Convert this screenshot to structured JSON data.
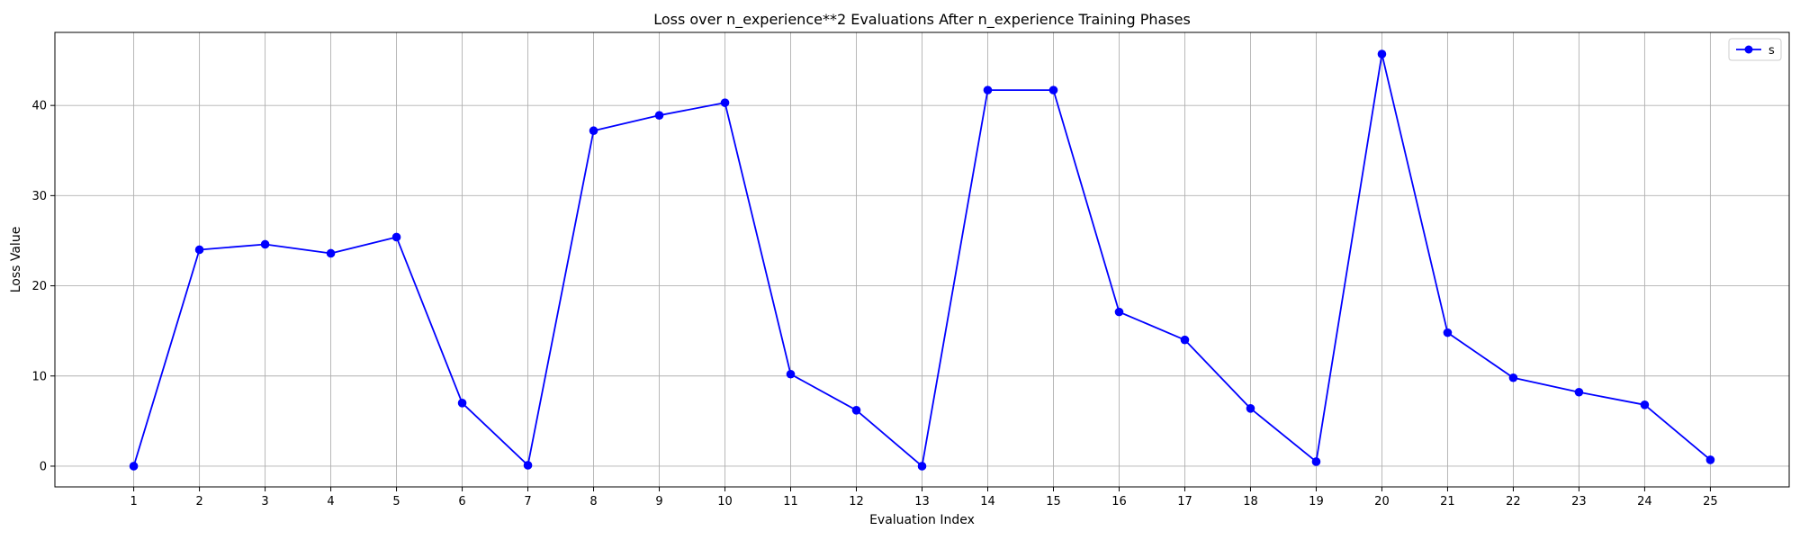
{
  "chart_data": {
    "type": "line",
    "title": "Loss over n_experience**2 Evaluations After n_experience Training Phases",
    "xlabel": "Evaluation Index",
    "ylabel": "Loss Value",
    "x": [
      1,
      2,
      3,
      4,
      5,
      6,
      7,
      8,
      9,
      10,
      11,
      12,
      13,
      14,
      15,
      16,
      17,
      18,
      19,
      20,
      21,
      22,
      23,
      24,
      25
    ],
    "x_tick_labels": [
      "1",
      "2",
      "3",
      "4",
      "5",
      "6",
      "7",
      "8",
      "9",
      "10",
      "11",
      "12",
      "13",
      "14",
      "15",
      "16",
      "17",
      "18",
      "19",
      "20",
      "21",
      "22",
      "23",
      "24",
      "25"
    ],
    "xlim": [
      -0.2,
      26.2
    ],
    "y_ticks": [
      0,
      10,
      20,
      30,
      40
    ],
    "y_tick_labels": [
      "0",
      "10",
      "20",
      "30",
      "40"
    ],
    "ylim": [
      -2.3,
      48.1
    ],
    "grid": true,
    "legend_position": "top-right",
    "series": [
      {
        "name": "s",
        "color": "#0000ff",
        "marker": "circle",
        "values": [
          0.0,
          24.0,
          24.6,
          23.6,
          25.4,
          7.0,
          0.1,
          37.2,
          38.9,
          40.3,
          10.2,
          6.2,
          0.0,
          41.7,
          41.7,
          17.1,
          14.0,
          6.4,
          0.5,
          45.7,
          14.8,
          9.8,
          8.2,
          6.8,
          0.7
        ]
      }
    ]
  }
}
